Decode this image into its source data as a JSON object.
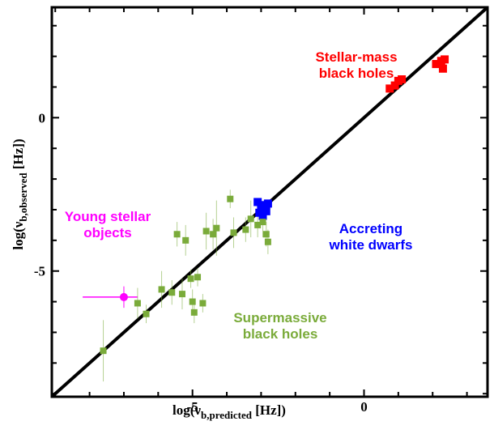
{
  "chart_data": {
    "type": "scatter",
    "title": "",
    "xlabel": {
      "main": "log(ν",
      "sub": "b,predicted",
      "unit": " [Hz])"
    },
    "ylabel": {
      "main": "log(ν",
      "sub": "b,observed",
      "unit": " [Hz])"
    },
    "xlim": [
      -9.1,
      3.6
    ],
    "ylim": [
      -9.1,
      3.6
    ],
    "x_ticks": [
      -5,
      0
    ],
    "y_ticks": [
      -5,
      0
    ],
    "grid": false,
    "reference_line": {
      "x": [
        -9.1,
        3.6
      ],
      "y": [
        -9.1,
        3.6
      ],
      "color": "#000000"
    },
    "series": [
      {
        "name": "Stellar-mass black holes",
        "color": "#ff0000",
        "marker": "square",
        "label_lines": [
          "Stellar-mass",
          "black holes"
        ],
        "points": [
          {
            "x": 0.75,
            "y": 0.95
          },
          {
            "x": 0.9,
            "y": 1.05
          },
          {
            "x": 1.0,
            "y": 1.2
          },
          {
            "x": 1.1,
            "y": 1.25
          },
          {
            "x": 2.1,
            "y": 1.75
          },
          {
            "x": 2.25,
            "y": 1.85
          },
          {
            "x": 2.3,
            "y": 1.6
          },
          {
            "x": 2.35,
            "y": 1.9
          }
        ]
      },
      {
        "name": "Accreting white dwarfs",
        "color": "#0000ff",
        "marker": "square",
        "label_lines": [
          "Accreting",
          "white dwarfs"
        ],
        "points": [
          {
            "x": -3.1,
            "y": -2.75
          },
          {
            "x": -3.05,
            "y": -3.1
          },
          {
            "x": -3.0,
            "y": -2.9
          },
          {
            "x": -2.95,
            "y": -3.2
          },
          {
            "x": -2.9,
            "y": -2.85
          },
          {
            "x": -2.85,
            "y": -3.05
          },
          {
            "x": -2.8,
            "y": -2.8
          }
        ]
      },
      {
        "name": "Young stellar objects",
        "color": "#ff00ff",
        "marker": "circle",
        "label_lines": [
          "Young stellar",
          "objects"
        ],
        "points": [
          {
            "x": -7.0,
            "y": -5.85,
            "xerr": [
              1.2,
              0.4
            ],
            "yerr": 0.35
          }
        ]
      },
      {
        "name": "Supermassive black holes",
        "color": "#7aab3a",
        "marker": "square",
        "label_lines": [
          "Supermassive",
          "black holes"
        ],
        "points": [
          {
            "x": -7.6,
            "y": -7.6,
            "yerr": 1.0
          },
          {
            "x": -6.6,
            "y": -6.05,
            "yerr": 0.5
          },
          {
            "x": -6.35,
            "y": -6.4,
            "yerr": 0.3
          },
          {
            "x": -5.9,
            "y": -5.6,
            "yerr": 0.6
          },
          {
            "x": -5.6,
            "y": -5.7,
            "yerr": 0.4
          },
          {
            "x": -5.45,
            "y": -3.8,
            "yerr": 0.4
          },
          {
            "x": -5.3,
            "y": -5.75,
            "yerr": 0.5
          },
          {
            "x": -5.2,
            "y": -4.0,
            "yerr": 0.5
          },
          {
            "x": -5.05,
            "y": -5.25,
            "yerr": 0.3
          },
          {
            "x": -5.0,
            "y": -6.0,
            "yerr": 0.4
          },
          {
            "x": -4.95,
            "y": -6.35,
            "yerr": 0.35
          },
          {
            "x": -4.85,
            "y": -5.2,
            "yerr": 0.3
          },
          {
            "x": -4.7,
            "y": -6.05,
            "yerr": 0.3
          },
          {
            "x": -4.6,
            "y": -3.7,
            "yerr": 0.6
          },
          {
            "x": -4.4,
            "y": -3.8,
            "yerr": 0.5
          },
          {
            "x": -4.3,
            "y": -3.6,
            "yerr": 0.9
          },
          {
            "x": -3.9,
            "y": -2.65,
            "yerr": 0.3
          },
          {
            "x": -3.8,
            "y": -3.75,
            "yerr": 0.5
          },
          {
            "x": -3.45,
            "y": -3.65,
            "yerr": 0.4
          },
          {
            "x": -3.3,
            "y": -3.3,
            "yerr": 0.6
          },
          {
            "x": -3.1,
            "y": -3.5,
            "yerr": 0.4
          },
          {
            "x": -2.95,
            "y": -3.4,
            "yerr": 0.5
          },
          {
            "x": -2.85,
            "y": -3.8,
            "yerr": 0.4
          },
          {
            "x": -2.8,
            "y": -4.05,
            "yerr": 0.4
          }
        ]
      }
    ]
  }
}
